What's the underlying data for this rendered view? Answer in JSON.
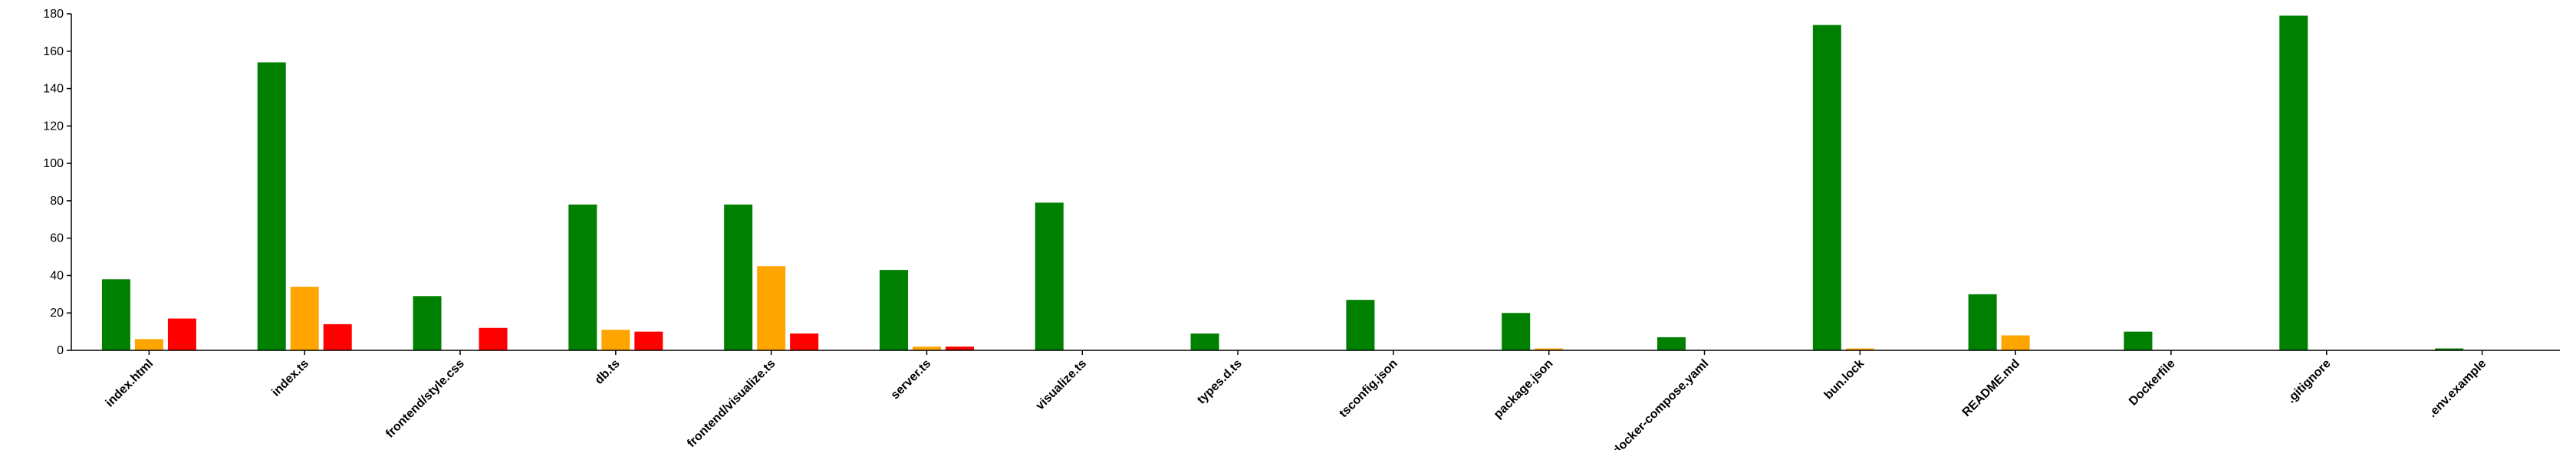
{
  "chart_data": {
    "type": "bar",
    "categories": [
      "index.html",
      "index.ts",
      "frontend/style.css",
      "db.ts",
      "frontend/visualize.ts",
      "server.ts",
      "visualize.ts",
      "types.d.ts",
      "tsconfig.json",
      "package.json",
      "docker-compose.yaml",
      "bun.lock",
      "README.md",
      "Dockerfile",
      ".gitignore",
      ".env.example"
    ],
    "series": [
      {
        "color": "#008000",
        "values": [
          38,
          154,
          29,
          78,
          78,
          43,
          79,
          9,
          27,
          20,
          7,
          174,
          30,
          10,
          179,
          1
        ]
      },
      {
        "color": "#FFA500",
        "values": [
          6,
          34,
          0,
          11,
          45,
          2,
          0,
          0,
          0,
          1,
          0,
          1,
          8,
          0,
          0,
          0
        ]
      },
      {
        "color": "#FF0000",
        "values": [
          17,
          14,
          12,
          10,
          9,
          2,
          0,
          0,
          0,
          0,
          0,
          0,
          0,
          0,
          0,
          0
        ]
      }
    ],
    "yticks": [
      "0",
      "20",
      "40",
      "60",
      "80",
      "100",
      "120",
      "140",
      "160",
      "180"
    ],
    "ylim": [
      0,
      180
    ],
    "grid": false,
    "legend": "none"
  }
}
